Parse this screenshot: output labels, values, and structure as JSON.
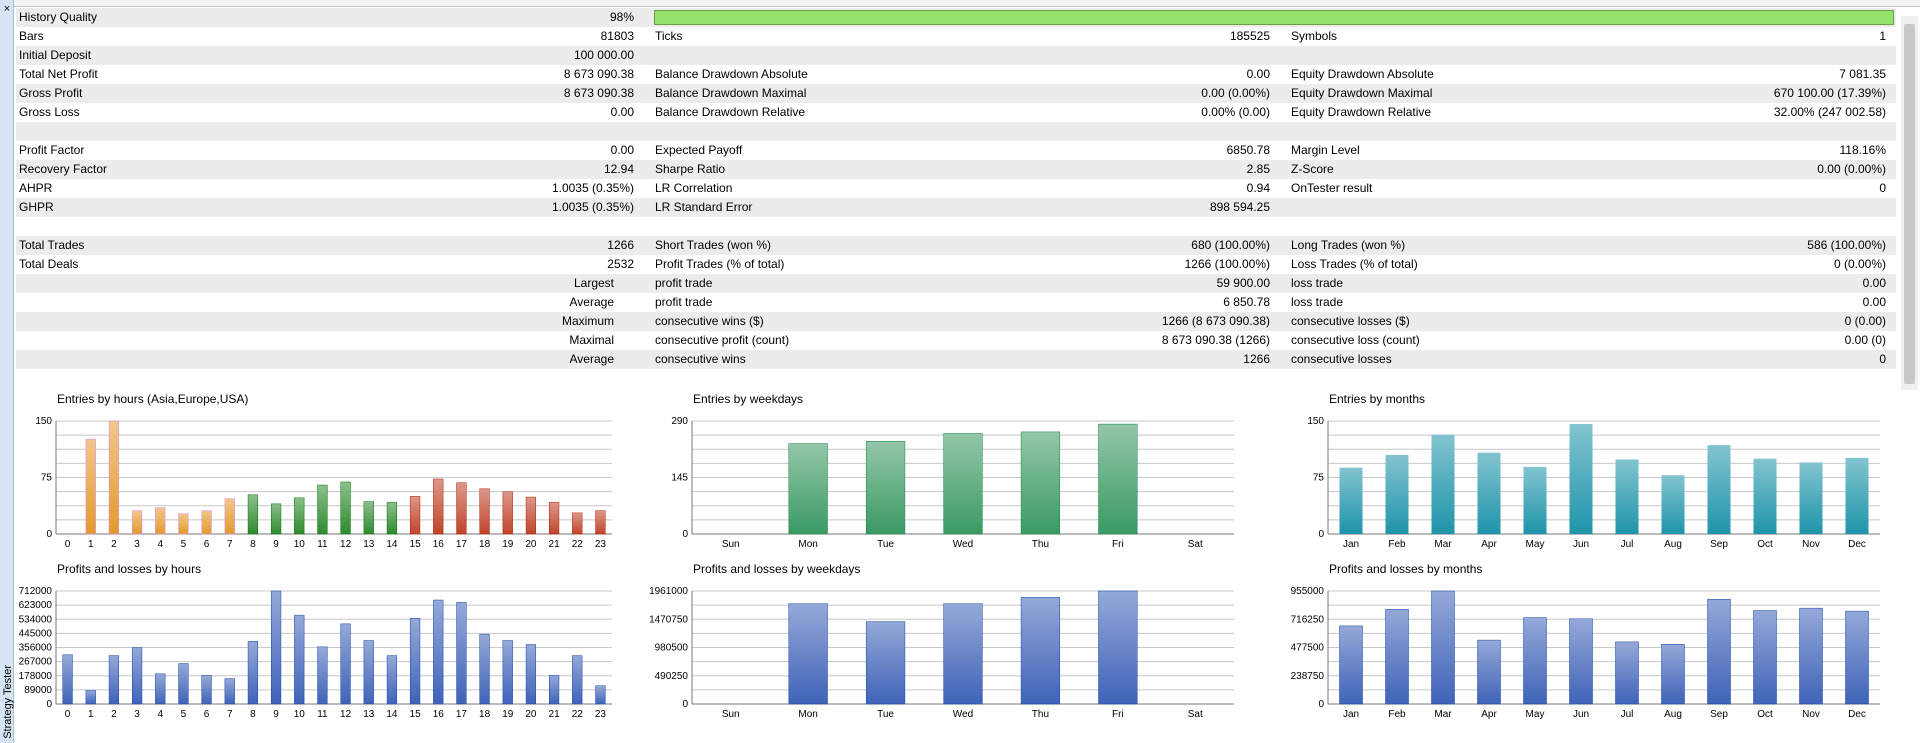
{
  "window": {
    "close_glyph": "×",
    "side_label": "Strategy Tester"
  },
  "report": {
    "rows": [
      {
        "shade": true,
        "c": [
          [
            "History Quality",
            "98%"
          ],
          [
            "",
            ""
          ],
          [
            "",
            ""
          ]
        ],
        "bar": 0.98
      },
      {
        "shade": false,
        "c": [
          [
            "Bars",
            "81803"
          ],
          [
            "Ticks",
            "185525"
          ],
          [
            "Symbols",
            "1"
          ]
        ]
      },
      {
        "shade": true,
        "c": [
          [
            "Initial Deposit",
            "100 000.00"
          ],
          [
            "",
            ""
          ],
          [
            "",
            ""
          ]
        ]
      },
      {
        "shade": false,
        "c": [
          [
            "Total Net Profit",
            "8 673 090.38"
          ],
          [
            "Balance Drawdown Absolute",
            "0.00"
          ],
          [
            "Equity Drawdown Absolute",
            "7 081.35"
          ]
        ]
      },
      {
        "shade": true,
        "c": [
          [
            "Gross Profit",
            "8 673 090.38"
          ],
          [
            "Balance Drawdown Maximal",
            "0.00 (0.00%)"
          ],
          [
            "Equity Drawdown Maximal",
            "670 100.00 (17.39%)"
          ]
        ]
      },
      {
        "shade": false,
        "c": [
          [
            "Gross Loss",
            "0.00"
          ],
          [
            "Balance Drawdown Relative",
            "0.00% (0.00)"
          ],
          [
            "Equity Drawdown Relative",
            "32.00% (247 002.58)"
          ]
        ]
      },
      {
        "shade": true,
        "c": [
          [
            "",
            ""
          ],
          [
            "",
            ""
          ],
          [
            "",
            ""
          ]
        ]
      },
      {
        "shade": false,
        "c": [
          [
            "Profit Factor",
            "0.00"
          ],
          [
            "Expected Payoff",
            "6850.78"
          ],
          [
            "Margin Level",
            "118.16%"
          ]
        ]
      },
      {
        "shade": true,
        "c": [
          [
            "Recovery Factor",
            "12.94"
          ],
          [
            "Sharpe Ratio",
            "2.85"
          ],
          [
            "Z-Score",
            "0.00 (0.00%)"
          ]
        ]
      },
      {
        "shade": false,
        "c": [
          [
            "AHPR",
            "1.0035 (0.35%)"
          ],
          [
            "LR Correlation",
            "0.94"
          ],
          [
            "OnTester result",
            "0"
          ]
        ]
      },
      {
        "shade": true,
        "c": [
          [
            "GHPR",
            "1.0035 (0.35%)"
          ],
          [
            "LR Standard Error",
            "898 594.25"
          ],
          [
            "",
            ""
          ]
        ]
      },
      {
        "shade": false,
        "c": [
          [
            "",
            ""
          ],
          [
            "",
            ""
          ],
          [
            "",
            ""
          ]
        ]
      },
      {
        "shade": true,
        "c": [
          [
            "Total Trades",
            "1266"
          ],
          [
            "Short Trades (won %)",
            "680 (100.00%)"
          ],
          [
            "Long Trades (won %)",
            "586 (100.00%)"
          ]
        ]
      },
      {
        "shade": false,
        "c": [
          [
            "Total Deals",
            "2532"
          ],
          [
            "Profit Trades (% of total)",
            "1266 (100.00%)"
          ],
          [
            "Loss Trades (% of total)",
            "0 (0.00%)"
          ]
        ]
      },
      {
        "shade": true,
        "c": [
          [
            "",
            "Largest"
          ],
          [
            "profit trade",
            "59 900.00"
          ],
          [
            "loss trade",
            "0.00"
          ]
        ],
        "right_label": true
      },
      {
        "shade": false,
        "c": [
          [
            "",
            "Average"
          ],
          [
            "profit trade",
            "6 850.78"
          ],
          [
            "loss trade",
            "0.00"
          ]
        ],
        "right_label": true
      },
      {
        "shade": true,
        "c": [
          [
            "",
            "Maximum"
          ],
          [
            "consecutive wins ($)",
            "1266 (8 673 090.38)"
          ],
          [
            "consecutive losses ($)",
            "0 (0.00)"
          ]
        ],
        "right_label": true
      },
      {
        "shade": false,
        "c": [
          [
            "",
            "Maximal"
          ],
          [
            "consecutive profit (count)",
            "8 673 090.38 (1266)"
          ],
          [
            "consecutive loss (count)",
            "0.00 (0)"
          ]
        ],
        "right_label": true
      },
      {
        "shade": true,
        "c": [
          [
            "",
            "Average"
          ],
          [
            "consecutive wins",
            "1266"
          ],
          [
            "consecutive losses",
            "0"
          ]
        ],
        "right_label": true
      },
      {
        "shade": false,
        "c": [
          [
            "",
            ""
          ],
          [
            "",
            ""
          ],
          [
            "",
            ""
          ]
        ]
      }
    ]
  },
  "colors": {
    "asia": "#e39a2a",
    "europe": "#2e8b2e",
    "usa": "#c0442b",
    "weekdays_green": "#3a9a63",
    "months_teal": "#1e94aa",
    "pl_blue": "#3f63b8"
  },
  "chart_data": [
    {
      "type": "bar",
      "id": "entries-hours",
      "title": "Entries by hours (Asia,Europe,USA)",
      "categories": [
        "0",
        "1",
        "2",
        "3",
        "4",
        "5",
        "6",
        "7",
        "8",
        "9",
        "10",
        "11",
        "12",
        "13",
        "14",
        "15",
        "16",
        "17",
        "18",
        "19",
        "20",
        "21",
        "22",
        "23"
      ],
      "values": [
        0,
        126,
        150,
        31,
        35,
        27,
        31,
        47,
        52,
        40,
        48,
        65,
        69,
        43,
        42,
        50,
        73,
        68,
        60,
        56,
        49,
        42,
        28,
        31
      ],
      "groups": [
        "asia",
        "asia",
        "asia",
        "asia",
        "asia",
        "asia",
        "asia",
        "asia",
        "europe",
        "europe",
        "europe",
        "europe",
        "europe",
        "europe",
        "europe",
        "usa",
        "usa",
        "usa",
        "usa",
        "usa",
        "usa",
        "usa",
        "usa",
        "usa"
      ],
      "ylim": [
        0,
        150
      ],
      "yticks": [
        "0",
        "75",
        "150"
      ]
    },
    {
      "type": "bar",
      "id": "entries-weekdays",
      "title": "Entries by weekdays",
      "categories": [
        "Sun",
        "Mon",
        "Tue",
        "Wed",
        "Thu",
        "Fri",
        "Sat"
      ],
      "values": [
        0,
        232,
        238,
        258,
        262,
        282,
        0
      ],
      "ylim": [
        0,
        290
      ],
      "yticks": [
        "0",
        "145",
        "290"
      ]
    },
    {
      "type": "bar",
      "id": "entries-months",
      "title": "Entries by months",
      "categories": [
        "Jan",
        "Feb",
        "Mar",
        "Apr",
        "May",
        "Jun",
        "Jul",
        "Aug",
        "Sep",
        "Oct",
        "Nov",
        "Dec"
      ],
      "values": [
        88,
        105,
        132,
        108,
        89,
        146,
        99,
        78,
        118,
        100,
        95,
        101
      ],
      "ylim": [
        0,
        150
      ],
      "yticks": [
        "0",
        "75",
        "150"
      ]
    },
    {
      "type": "bar",
      "id": "pl-hours",
      "title": "Profits and losses by hours",
      "categories": [
        "0",
        "1",
        "2",
        "3",
        "4",
        "5",
        "6",
        "7",
        "8",
        "9",
        "10",
        "11",
        "12",
        "13",
        "14",
        "15",
        "16",
        "17",
        "18",
        "19",
        "20",
        "21",
        "22",
        "23"
      ],
      "values": [
        310000,
        85000,
        305000,
        355000,
        190000,
        255000,
        180000,
        160000,
        395000,
        712000,
        560000,
        360000,
        505000,
        400000,
        305000,
        540000,
        655000,
        640000,
        440000,
        400000,
        375000,
        180000,
        305000,
        115000
      ],
      "ylim": [
        0,
        712000
      ],
      "yticks": [
        "0",
        "89000",
        "178000",
        "267000",
        "356000",
        "445000",
        "534000",
        "623000",
        "712000"
      ]
    },
    {
      "type": "bar",
      "id": "pl-weekdays",
      "title": "Profits and losses by weekdays",
      "categories": [
        "Sun",
        "Mon",
        "Tue",
        "Wed",
        "Thu",
        "Fri",
        "Sat"
      ],
      "values": [
        0,
        1740000,
        1430000,
        1740000,
        1850000,
        1961000,
        0
      ],
      "ylim": [
        0,
        1961000
      ],
      "yticks": [
        "0",
        "490250",
        "980500",
        "1470750",
        "1961000"
      ]
    },
    {
      "type": "bar",
      "id": "pl-months",
      "title": "Profits and losses by months",
      "categories": [
        "Jan",
        "Feb",
        "Mar",
        "Apr",
        "May",
        "Jun",
        "Jul",
        "Aug",
        "Sep",
        "Oct",
        "Nov",
        "Dec"
      ],
      "values": [
        660000,
        800000,
        955000,
        540000,
        730000,
        720000,
        525000,
        505000,
        885000,
        790000,
        810000,
        785000
      ],
      "ylim": [
        0,
        955000
      ],
      "yticks": [
        "0",
        "238750",
        "477500",
        "716250",
        "955000"
      ]
    }
  ]
}
